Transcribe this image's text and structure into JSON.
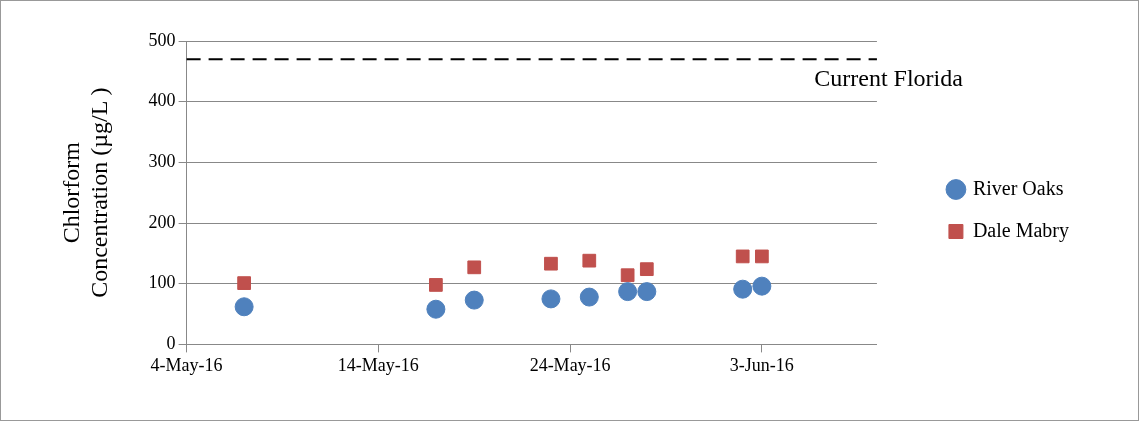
{
  "chart_data": {
    "type": "scatter",
    "ylabel": "Chlorform\nConcentration (µg/L )",
    "x": [
      "--05-07",
      "--05-17",
      "--05-19",
      "--05-23",
      "--05-25",
      "--05-27",
      "--05-28",
      "--06-02",
      "--06-03"
    ],
    "series": [
      {
        "name": "River Oaks",
        "color": "#4f81bd",
        "marker": "circle",
        "values": [
          62,
          58,
          73,
          75,
          78,
          87,
          87,
          91,
          96
        ]
      },
      {
        "name": "Dale Mabry",
        "color": "#c0504d",
        "marker": "square",
        "values": [
          101,
          98,
          127,
          133,
          138,
          114,
          124,
          145,
          145
        ]
      }
    ],
    "xlim": [
      "--05-04",
      "--06-09"
    ],
    "xticks": [
      {
        "value": "--05-04",
        "label": "4-May-16"
      },
      {
        "value": "--05-14",
        "label": "14-May-16"
      },
      {
        "value": "--05-24",
        "label": "24-May-16"
      },
      {
        "value": "--06-03",
        "label": "3-Jun-16"
      }
    ],
    "ylim": [
      0,
      500
    ],
    "yticks": [
      0,
      100,
      200,
      300,
      400,
      500
    ],
    "grid": "y",
    "legend": "right",
    "ref_lines": [
      {
        "axis": "y",
        "value": 470,
        "label": "Current Florida",
        "color": "#000000",
        "line_style": "dashed"
      }
    ]
  }
}
